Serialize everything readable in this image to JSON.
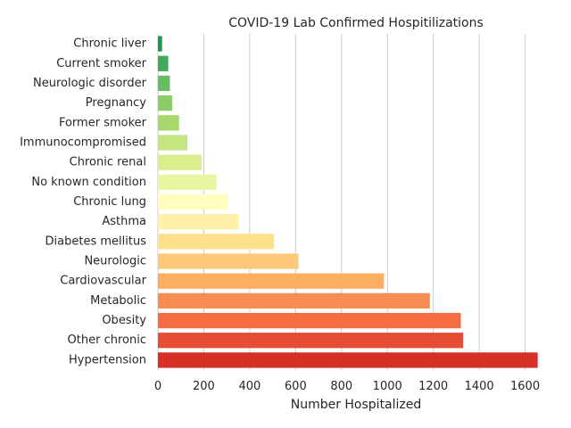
{
  "chart_data": {
    "type": "bar",
    "orientation": "horizontal",
    "title": "COVID-19 Lab Confirmed Hospitilizations",
    "xlabel": "Number Hospitalized",
    "ylabel": "",
    "xlim": [
      0,
      1730
    ],
    "xticks": [
      0,
      200,
      400,
      600,
      800,
      1000,
      1200,
      1400,
      1600
    ],
    "grid": "vertical",
    "legend": "none",
    "categories": [
      "Chronic liver",
      "Current smoker",
      "Neurologic disorder",
      "Pregnancy",
      "Former smoker",
      "Immunocompromised",
      "Chronic renal",
      "No known condition",
      "Chronic lung",
      "Asthma",
      "Diabetes mellitus",
      "Neurologic",
      "Cardiovascular",
      "Metabolic",
      "Obesity",
      "Other chronic",
      "Hypertension"
    ],
    "values": [
      18,
      45,
      52,
      62,
      92,
      128,
      190,
      255,
      305,
      352,
      505,
      612,
      985,
      1185,
      1320,
      1330,
      1655
    ],
    "colors": [
      "#1a9850",
      "#3faa59",
      "#66bd63",
      "#8bcc67",
      "#a6d96a",
      "#c4e57f",
      "#d9ef8b",
      "#e9f5a1",
      "#ffffbf",
      "#fff0aa",
      "#fee08b",
      "#fdc878",
      "#fdae61",
      "#f88d52",
      "#f46d43",
      "#e54e35",
      "#d73027"
    ]
  }
}
